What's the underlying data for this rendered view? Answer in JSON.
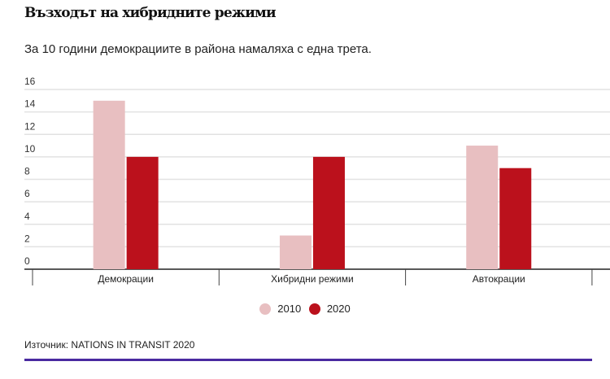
{
  "title": "Възходът на хибридните режими",
  "subtitle": "За 10 години демокрациите в района намаляха с една трета.",
  "source": "Източник: NATIONS IN TRANSIT 2020",
  "colors": {
    "2010": "#e8bfc1",
    "2020": "#bb111c",
    "accent_rule": "#4a2aa0"
  },
  "chart_data": {
    "type": "bar",
    "categories": [
      "Демокрации",
      "Хибридни режими",
      "Автокрации"
    ],
    "series": [
      {
        "name": "2010",
        "values": [
          15,
          3,
          11
        ]
      },
      {
        "name": "2020",
        "values": [
          10,
          10,
          9
        ]
      }
    ],
    "ylim": [
      0,
      16
    ],
    "yticks": [
      "0",
      "2",
      "4",
      "6",
      "8",
      "10",
      "12",
      "14",
      "16"
    ],
    "grid": true,
    "legend": "bottom-center"
  }
}
